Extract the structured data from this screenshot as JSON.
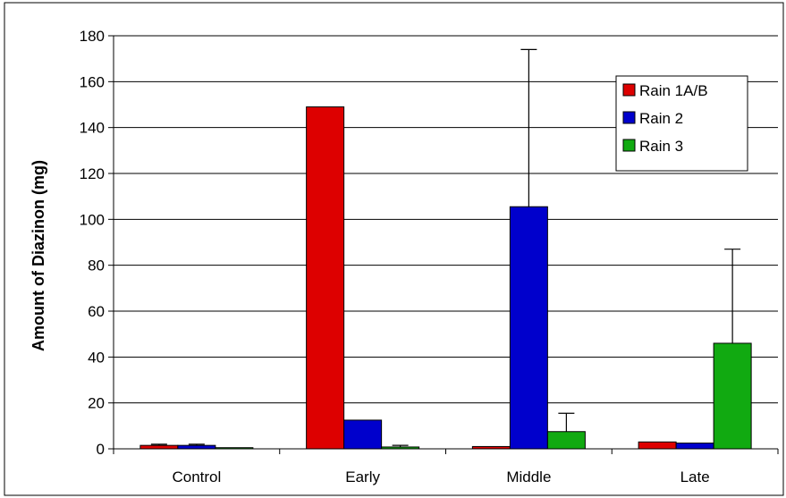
{
  "chart_data": {
    "type": "bar",
    "categories": [
      "Control",
      "Early",
      "Middle",
      "Late"
    ],
    "ylabel": "Amount of Diazinon (mg)",
    "xlabel": "",
    "ylim": [
      0,
      180
    ],
    "yticks": [
      0,
      20,
      40,
      60,
      80,
      100,
      120,
      140,
      160,
      180
    ],
    "grid": true,
    "legend_position": "top-right",
    "series": [
      {
        "name": "Rain 1A/B",
        "color": "#dd0000",
        "values": [
          1.5,
          149,
          1.0,
          3.0
        ],
        "error_upper": [
          2.0,
          149,
          1.0,
          3.0
        ]
      },
      {
        "name": "Rain 2",
        "color": "#0000cc",
        "values": [
          1.5,
          12.5,
          105.5,
          2.5
        ],
        "error_upper": [
          2.0,
          12.5,
          174,
          2.5
        ]
      },
      {
        "name": "Rain 3",
        "color": "#11aa11",
        "values": [
          0.5,
          0.8,
          7.5,
          46
        ],
        "error_upper": [
          0.5,
          1.5,
          15.5,
          87
        ]
      }
    ]
  }
}
